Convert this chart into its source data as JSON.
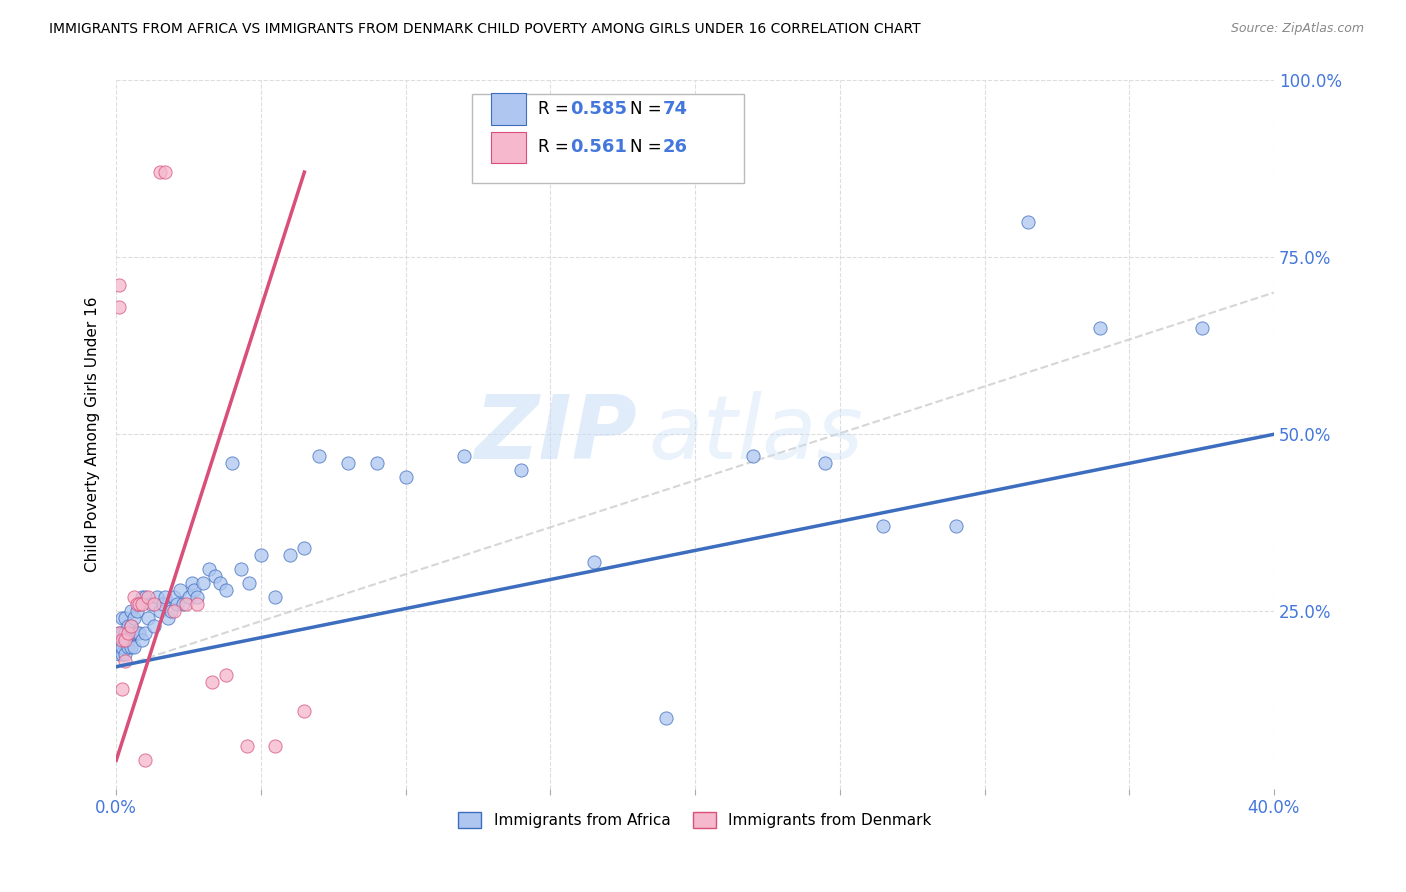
{
  "title": "IMMIGRANTS FROM AFRICA VS IMMIGRANTS FROM DENMARK CHILD POVERTY AMONG GIRLS UNDER 16 CORRELATION CHART",
  "source": "Source: ZipAtlas.com",
  "ylabel": "Child Poverty Among Girls Under 16",
  "xlim": [
    0.0,
    0.4
  ],
  "ylim": [
    0.0,
    1.0
  ],
  "africa_R": 0.585,
  "africa_N": 74,
  "denmark_R": 0.561,
  "denmark_N": 26,
  "africa_color": "#aec6f0",
  "denmark_color": "#f5b8cc",
  "africa_line_color": "#3d6dbf",
  "denmark_line_color": "#d94f7a",
  "watermark_zip": "ZIP",
  "watermark_atlas": "atlas",
  "legend_africa_label": "Immigrants from Africa",
  "legend_denmark_label": "Immigrants from Denmark",
  "africa_x": [
    0.001,
    0.001,
    0.001,
    0.001,
    0.002,
    0.002,
    0.002,
    0.002,
    0.003,
    0.003,
    0.003,
    0.003,
    0.004,
    0.004,
    0.004,
    0.005,
    0.005,
    0.005,
    0.005,
    0.006,
    0.006,
    0.006,
    0.007,
    0.007,
    0.008,
    0.008,
    0.009,
    0.009,
    0.01,
    0.01,
    0.011,
    0.012,
    0.013,
    0.014,
    0.015,
    0.016,
    0.017,
    0.018,
    0.019,
    0.02,
    0.021,
    0.022,
    0.023,
    0.025,
    0.026,
    0.027,
    0.028,
    0.03,
    0.032,
    0.034,
    0.036,
    0.038,
    0.04,
    0.043,
    0.046,
    0.05,
    0.055,
    0.06,
    0.065,
    0.07,
    0.08,
    0.09,
    0.1,
    0.12,
    0.14,
    0.165,
    0.19,
    0.22,
    0.245,
    0.265,
    0.29,
    0.315,
    0.34,
    0.375
  ],
  "africa_y": [
    0.19,
    0.2,
    0.21,
    0.22,
    0.19,
    0.2,
    0.22,
    0.24,
    0.19,
    0.21,
    0.22,
    0.24,
    0.2,
    0.21,
    0.23,
    0.2,
    0.22,
    0.23,
    0.25,
    0.2,
    0.22,
    0.24,
    0.22,
    0.25,
    0.22,
    0.26,
    0.21,
    0.27,
    0.22,
    0.27,
    0.24,
    0.26,
    0.23,
    0.27,
    0.25,
    0.26,
    0.27,
    0.24,
    0.25,
    0.27,
    0.26,
    0.28,
    0.26,
    0.27,
    0.29,
    0.28,
    0.27,
    0.29,
    0.31,
    0.3,
    0.29,
    0.28,
    0.46,
    0.31,
    0.29,
    0.33,
    0.27,
    0.33,
    0.34,
    0.47,
    0.46,
    0.46,
    0.44,
    0.47,
    0.45,
    0.32,
    0.1,
    0.47,
    0.46,
    0.37,
    0.37,
    0.8,
    0.65,
    0.65
  ],
  "denmark_x": [
    0.001,
    0.001,
    0.001,
    0.002,
    0.002,
    0.003,
    0.003,
    0.004,
    0.005,
    0.006,
    0.007,
    0.008,
    0.009,
    0.01,
    0.011,
    0.013,
    0.015,
    0.017,
    0.02,
    0.024,
    0.028,
    0.033,
    0.038,
    0.045,
    0.055,
    0.065
  ],
  "denmark_y": [
    0.71,
    0.68,
    0.22,
    0.21,
    0.14,
    0.21,
    0.18,
    0.22,
    0.23,
    0.27,
    0.26,
    0.26,
    0.26,
    0.04,
    0.27,
    0.26,
    0.87,
    0.87,
    0.25,
    0.26,
    0.26,
    0.15,
    0.16,
    0.06,
    0.06,
    0.11
  ],
  "africa_trend_x0": 0.0,
  "africa_trend_y0": 0.172,
  "africa_trend_x1": 0.4,
  "africa_trend_y1": 0.5,
  "denmark_trend_x0": 0.0,
  "denmark_trend_y0": 0.04,
  "denmark_trend_x1": 0.065,
  "denmark_trend_y1": 0.87,
  "dash_trend_x0": 0.0,
  "dash_trend_y0": 0.17,
  "dash_trend_x1": 0.4,
  "dash_trend_y1": 0.7
}
